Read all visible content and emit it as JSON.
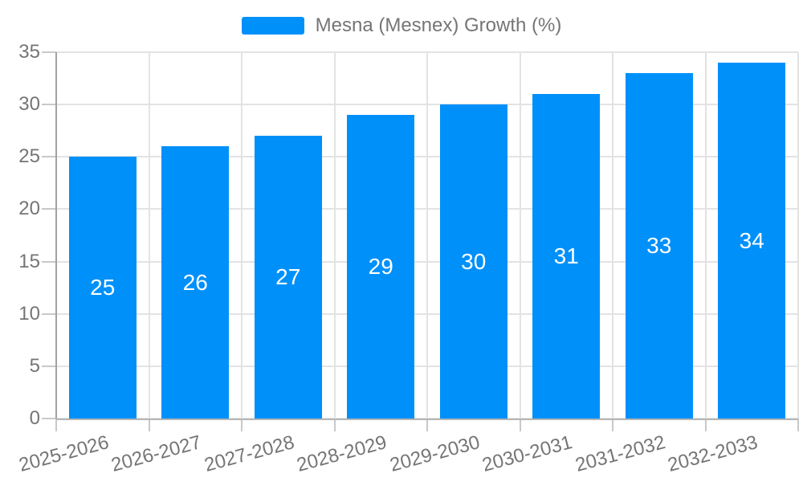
{
  "legend": {
    "label": "Mesna (Mesnex) Growth (%)"
  },
  "chart_data": {
    "type": "bar",
    "title": "Mesna (Mesnex) Growth (%)",
    "series_name": "Mesna (Mesnex) Growth (%)",
    "categories": [
      "2025-2026",
      "2026-2027",
      "2027-2028",
      "2028-2029",
      "2029-2030",
      "2030-2031",
      "2031-2032",
      "2032-2033"
    ],
    "values": [
      25,
      26,
      27,
      29,
      30,
      31,
      33,
      34
    ],
    "xlabel": "",
    "ylabel": "",
    "ylim": [
      0,
      35
    ],
    "yticks": [
      0,
      5,
      10,
      15,
      20,
      25,
      30,
      35
    ],
    "grid": true,
    "legend_position": "top",
    "x_label_rotation_deg": -15,
    "colors": {
      "bar": "#0090FA",
      "grid": "#e3e3e3",
      "axis_y": "#a2a2a2",
      "axis_x": "#b6b6b6",
      "tick": "#c9c9c9",
      "label_text": "#757575",
      "value_text": "#ffffff"
    }
  }
}
